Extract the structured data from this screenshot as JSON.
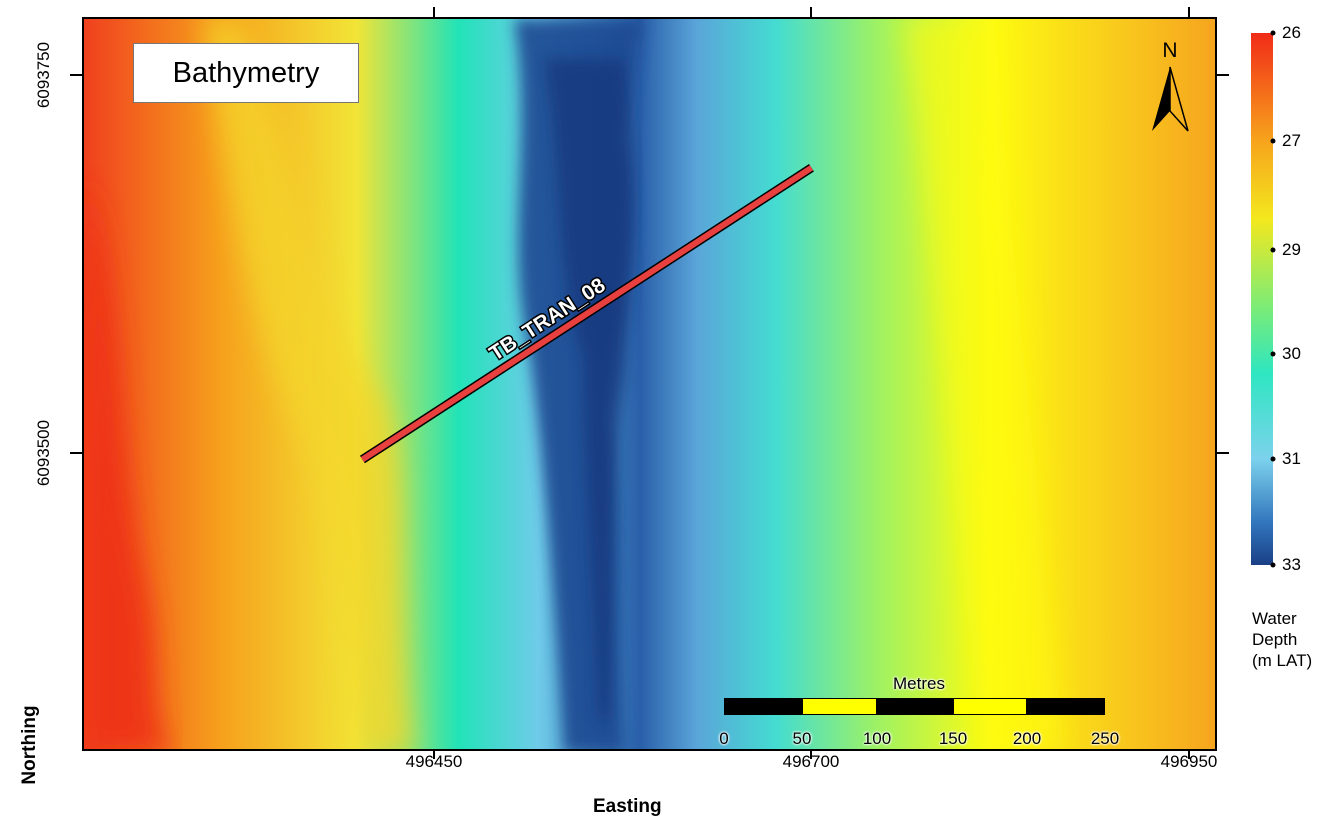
{
  "map": {
    "title": "Bathymetry",
    "transect_label": "TB_TRAN_08",
    "north_label": "N",
    "x_axis_title": "Easting",
    "y_axis_title": "Northing",
    "x_ticks": [
      {
        "value": 496450,
        "label": "496450"
      },
      {
        "value": 496700,
        "label": "496700"
      },
      {
        "value": 496950,
        "label": "496950"
      }
    ],
    "y_ticks": [
      {
        "value": 6093750,
        "label": "6093750"
      },
      {
        "value": 6093500,
        "label": "6093500"
      }
    ],
    "transect": {
      "start": {
        "easting": 496402,
        "northing": 6093497
      },
      "end": {
        "easting": 496699,
        "northing": 6093690
      },
      "color": "#e8403f"
    }
  },
  "scale_bar": {
    "title": "Metres",
    "labels": [
      "0",
      "50",
      "100",
      "150",
      "200",
      "250"
    ]
  },
  "legend": {
    "title_lines": [
      "Water",
      "Depth",
      "(m LAT)"
    ],
    "labels": [
      "26",
      "27",
      "29",
      "30",
      "31",
      "33"
    ],
    "colors": {
      "shallow": "#f12b18",
      "mid": "#f3e81e",
      "turquoise": "#2ee6c1",
      "deep": "#1a3f86"
    }
  }
}
